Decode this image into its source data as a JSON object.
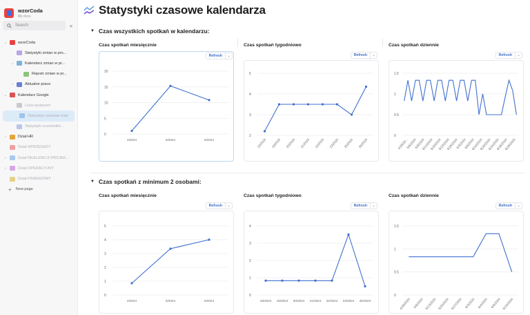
{
  "sidebar": {
    "workspace_name": "wzorCoda",
    "workspace_sub": "My docs",
    "search_placeholder": "Search",
    "collapse_icon": "«",
    "items": [
      {
        "label": "wzorCoda",
        "level": 0,
        "chevron": "down",
        "icon_color": "#e9423f",
        "dim": false
      },
      {
        "label": "Statystyki zmian w pro...",
        "level": 1,
        "chevron": "",
        "icon_color": "#b6a6e6",
        "dim": false
      },
      {
        "label": "Kalendarz zmian w pr...",
        "level": 1,
        "chevron": "down",
        "icon_color": "#7fb2d9",
        "dim": false
      },
      {
        "label": "Rejestr zmian w pr...",
        "level": 2,
        "chevron": "",
        "icon_color": "#8cc57a",
        "dim": false
      },
      {
        "label": "Aktualne prace",
        "level": 1,
        "chevron": "right",
        "icon_color": "#6a7fd8",
        "dim": false
      },
      {
        "label": "Kalendarz Google",
        "level": 0,
        "chevron": "down",
        "icon_color": "#d9534f",
        "dim": false
      },
      {
        "label": "Lista wydarzeń",
        "level": 1,
        "chevron": "",
        "icon_color": "#c9c9d1",
        "dim": true
      },
      {
        "label": "Statystyki czasowe kale",
        "level": 1,
        "chevron": "",
        "icon_color": "#9fc3ea",
        "dim": true,
        "active": true
      },
      {
        "label": "Statystyki uczestnikó...",
        "level": 1,
        "chevron": "",
        "icon_color": "#b9c6ea",
        "dim": true
      },
      {
        "label": "Dział HR",
        "level": 0,
        "chevron": "right",
        "icon_color": "#e9a23b",
        "dim": false
      },
      {
        "label": "Dział SPRZEDAŻY",
        "level": 0,
        "chevron": "",
        "icon_color": "#f0a0a0",
        "dim": true
      },
      {
        "label": "Dział REALIZACJI PROJEK...",
        "level": 0,
        "chevron": "right",
        "icon_color": "#a8c8ef",
        "dim": true
      },
      {
        "label": "Dział OPERACYJNY",
        "level": 0,
        "chevron": "right",
        "icon_color": "#d6a8e8",
        "dim": true
      },
      {
        "label": "Dział FINANSOWY",
        "level": 0,
        "chevron": "",
        "icon_color": "#e8d08a",
        "dim": true
      }
    ],
    "new_page_label": "New page"
  },
  "page": {
    "title": "Statystyki czasowe kalendarza",
    "title_icon": "chart-lines-icon"
  },
  "sections": [
    {
      "heading": "Czas wszystkich spotkań w kalendarzu:",
      "charts": [
        {
          "title": "Czas spotkań miesięcznie",
          "refresh_label": "Refresh"
        },
        {
          "title": "Czas spotkań tygodniowo",
          "refresh_label": "Refresh"
        },
        {
          "title": "Czas spotkań dziennie",
          "refresh_label": "Refresh"
        }
      ]
    },
    {
      "heading": "Czas spotkań z minimum 2 osobami:",
      "charts": [
        {
          "title": "Czas spotkań miesięcznie",
          "refresh_label": "Refresh"
        },
        {
          "title": "Czas spotkań tygodniowo",
          "refresh_label": "Refresh"
        },
        {
          "title": "Czas spotkań dziennie",
          "refresh_label": "Refresh"
        }
      ]
    }
  ],
  "colors": {
    "line": "#3f6fcf",
    "grid": "#f0f0f2",
    "axis_text": "#666"
  },
  "chart_data": [
    {
      "type": "line",
      "title": "Czas spotkań miesięcznie",
      "categories": [
        "4/2024",
        "5/2024",
        "6/2024"
      ],
      "values": [
        1.0,
        15.3,
        10.8
      ],
      "ylim": [
        0,
        20
      ],
      "yticks": [
        0,
        5,
        10,
        15,
        20
      ],
      "markers": true,
      "rotate_labels": false
    },
    {
      "type": "line",
      "title": "Czas spotkań tygodniowo",
      "categories": [
        "18/2024",
        "19/2024",
        "20/2024",
        "21/2024",
        "22/2024",
        "23/2024",
        "25/2024",
        "26/2024"
      ],
      "values": [
        2.2,
        3.5,
        3.5,
        3.5,
        3.5,
        3.5,
        3.0,
        4.35
      ],
      "ylim": [
        2,
        5
      ],
      "yticks": [
        2,
        3,
        4,
        5
      ],
      "markers": true,
      "rotate_labels": true
    },
    {
      "type": "line",
      "title": "Czas spotkań dziennie",
      "categories": [
        "4/29/20...",
        "5/6/2024",
        "5/9/2024",
        "5/14/2024",
        "5/20/2024",
        "5/23/2024",
        "5/28/2024",
        "6/3/2024",
        "6/6/2024",
        "6/10/2024",
        "6/20/2024",
        "6/24/2024",
        "6/26/2024",
        "6/28/2024"
      ],
      "values": [
        0.83,
        1.33,
        0.83,
        1.33,
        1.33,
        0.83,
        1.33,
        1.33,
        0.83,
        1.33,
        1.33,
        0.83,
        1.33,
        1.33,
        0.83,
        1.33,
        1.33,
        0.83,
        1.33,
        1.33,
        0.5,
        1.0,
        0.5,
        0.5,
        0.5,
        0.5,
        0.5,
        0.92,
        1.33,
        1.08,
        0.5
      ],
      "ylim": [
        0,
        1.5
      ],
      "yticks": [
        0,
        0.5,
        1,
        1.5
      ],
      "markers": false,
      "rotate_labels": true
    },
    {
      "type": "line",
      "title": "Czas spotkań miesięcznie",
      "categories": [
        "4/2024",
        "5/2024",
        "6/2024"
      ],
      "values": [
        0.85,
        3.35,
        4.0
      ],
      "ylim": [
        0,
        5
      ],
      "yticks": [
        0,
        1,
        2,
        3,
        4,
        5
      ],
      "markers": true,
      "rotate_labels": false
    },
    {
      "type": "line",
      "title": "Czas spotkań tygodniowo",
      "categories": [
        "18/2024",
        "19/2024",
        "20/2024",
        "21/2024",
        "22/2024",
        "23/2024",
        "25/2024"
      ],
      "values": [
        0.83,
        0.83,
        0.83,
        0.83,
        0.83,
        3.5,
        0.5
      ],
      "ylim": [
        0,
        4
      ],
      "yticks": [
        0,
        1,
        2,
        3,
        4
      ],
      "markers": true,
      "rotate_labels": false
    },
    {
      "type": "line",
      "title": "Czas spotkań dziennie",
      "categories": [
        "4/29/2024",
        "5/6/2024",
        "5/13/2024",
        "5/20/2024",
        "5/27/2024",
        "6/3/2024",
        "6/4/2024",
        "6/6/2024",
        "6/10/2024"
      ],
      "values": [
        0.83,
        0.83,
        0.83,
        0.83,
        0.83,
        0.83,
        1.33,
        1.33,
        0.5
      ],
      "ylim": [
        0,
        1.5
      ],
      "yticks": [
        0,
        0.5,
        1,
        1.5
      ],
      "markers": false,
      "rotate_labels": true
    }
  ]
}
